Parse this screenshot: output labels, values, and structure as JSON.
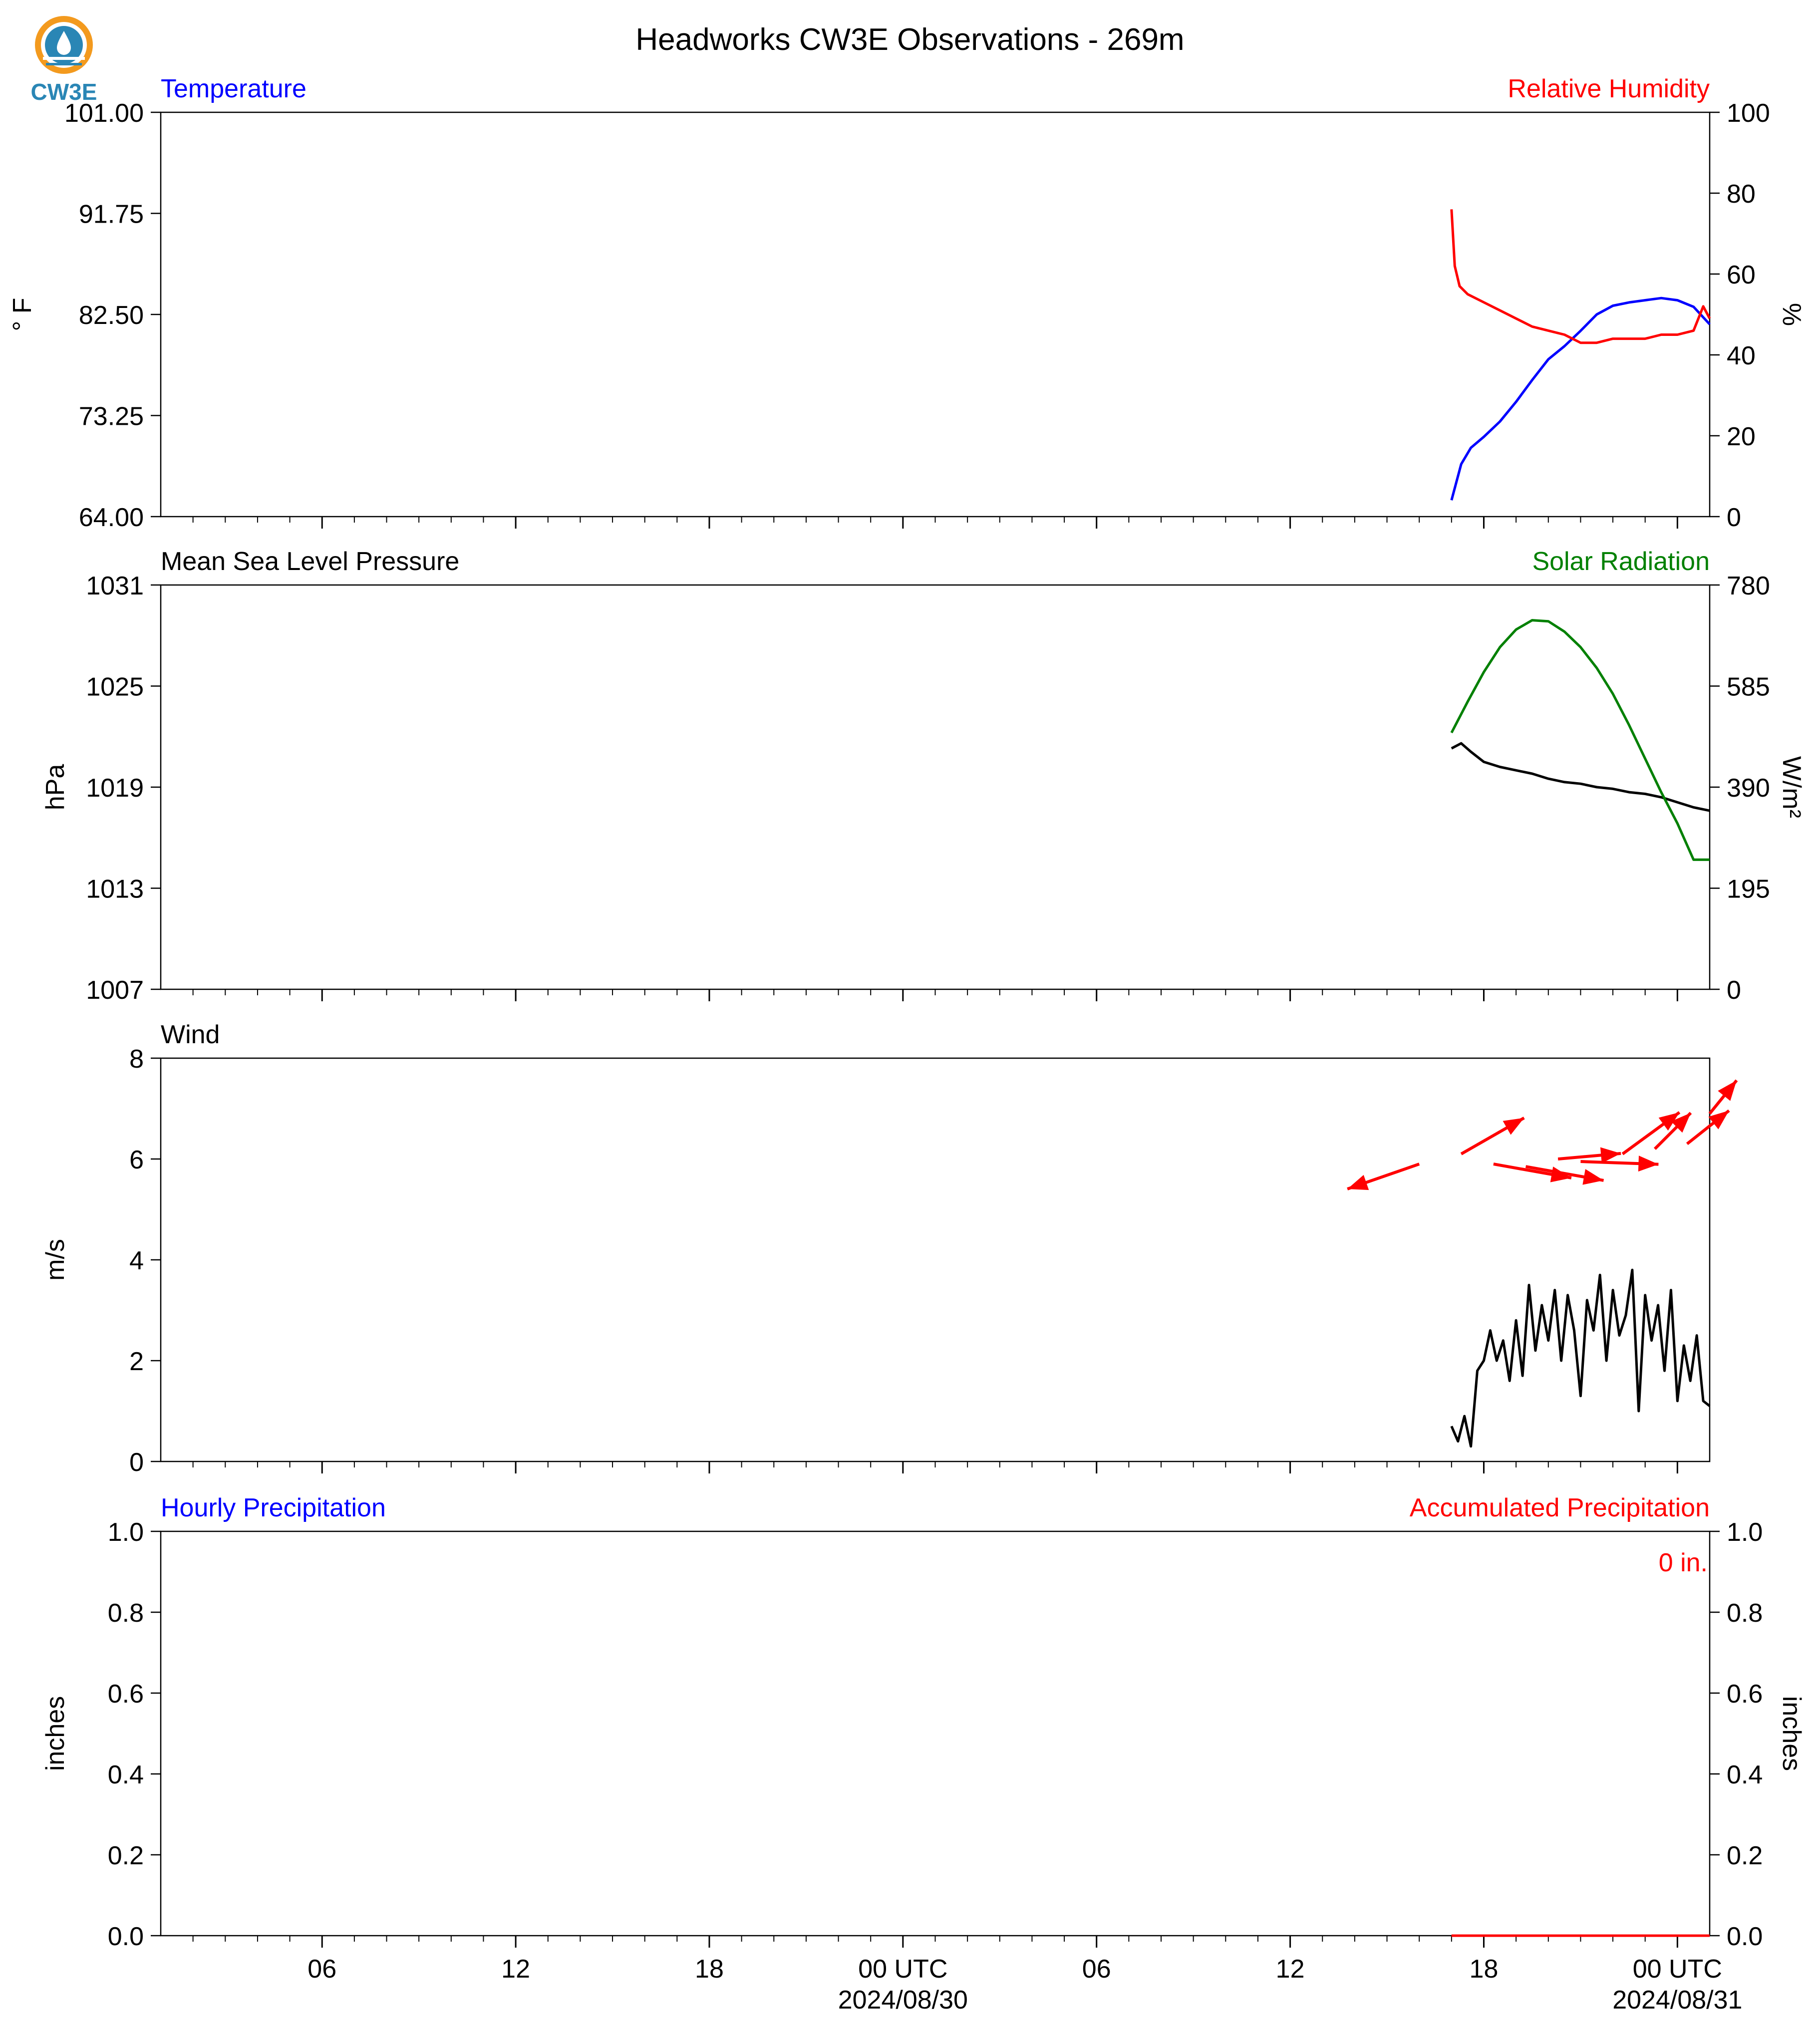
{
  "title": "Headworks CW3E Observations - 269m",
  "logo_text": "CW3E",
  "colors": {
    "temperature": "#0000ff",
    "humidity": "#ff0000",
    "pressure": "#000000",
    "solar": "#008000",
    "wind_speed": "#000000",
    "wind_arrows": "#ff0000",
    "hourly_precip_label": "#0000ff",
    "accum_precip": "#ff0000",
    "logo_orange": "#f39a1e",
    "logo_blue": "#2a86b5"
  },
  "x_axis": {
    "range_hours": [
      0,
      48
    ],
    "major_ticks": [
      {
        "hour": 5,
        "label": "06",
        "sublabel": ""
      },
      {
        "hour": 11,
        "label": "12",
        "sublabel": ""
      },
      {
        "hour": 17,
        "label": "18",
        "sublabel": ""
      },
      {
        "hour": 23,
        "label": "00 UTC",
        "sublabel": "2024/08/30"
      },
      {
        "hour": 29,
        "label": "06",
        "sublabel": ""
      },
      {
        "hour": 35,
        "label": "12",
        "sublabel": ""
      },
      {
        "hour": 41,
        "label": "18",
        "sublabel": ""
      },
      {
        "hour": 47,
        "label": "00 UTC",
        "sublabel": "2024/08/31"
      }
    ]
  },
  "chart_data": [
    {
      "type": "line",
      "panel": "temperature_humidity",
      "left_label": "Temperature",
      "right_label": "Relative Humidity",
      "ylabel_left": "° F",
      "ylabel_right": "%",
      "ylim_left": [
        64.0,
        101.0
      ],
      "yticks_left": [
        "64.00",
        "73.25",
        "82.50",
        "91.75",
        "101.00"
      ],
      "ylim_right": [
        0,
        100
      ],
      "yticks_right": [
        "0",
        "20",
        "40",
        "60",
        "80",
        "100"
      ],
      "series": [
        {
          "name": "Temperature",
          "axis": "left",
          "x": [
            40.0,
            40.3,
            40.6,
            41.0,
            41.5,
            42.0,
            42.5,
            43.0,
            43.5,
            44.0,
            44.5,
            45.0,
            45.5,
            46.0,
            46.5,
            47.0,
            47.5,
            48.0
          ],
          "y": [
            65.5,
            68.8,
            70.3,
            71.3,
            72.7,
            74.5,
            76.5,
            78.4,
            79.6,
            81.0,
            82.5,
            83.3,
            83.6,
            83.8,
            84.0,
            83.8,
            83.2,
            81.6
          ]
        },
        {
          "name": "Relative Humidity",
          "axis": "right",
          "x": [
            40.0,
            40.1,
            40.25,
            40.5,
            41.0,
            41.5,
            42.0,
            42.5,
            43.0,
            43.5,
            44.0,
            44.5,
            45.0,
            45.5,
            46.0,
            46.5,
            47.0,
            47.5,
            47.8,
            48.0
          ],
          "y": [
            76,
            62,
            57,
            55,
            53,
            51,
            49,
            47,
            46,
            45,
            43,
            43,
            44,
            44,
            44,
            45,
            45,
            46,
            52,
            49
          ]
        }
      ]
    },
    {
      "type": "line",
      "panel": "pressure_solar",
      "left_label": "Mean Sea Level Pressure",
      "right_label": "Solar Radiation",
      "ylabel_left": "hPa",
      "ylabel_right": "W/m²",
      "ylim_left": [
        1007,
        1031
      ],
      "yticks_left": [
        "1007",
        "1013",
        "1019",
        "1025",
        "1031"
      ],
      "ylim_right": [
        0,
        780
      ],
      "yticks_right": [
        "0",
        "195",
        "390",
        "585",
        "780"
      ],
      "series": [
        {
          "name": "Mean Sea Level Pressure",
          "axis": "left",
          "x": [
            40.0,
            40.3,
            40.6,
            41.0,
            41.5,
            42.0,
            42.5,
            43.0,
            43.5,
            44.0,
            44.5,
            45.0,
            45.5,
            46.0,
            46.5,
            47.0,
            47.5,
            48.0
          ],
          "y": [
            1021.3,
            1021.6,
            1021.1,
            1020.5,
            1020.2,
            1020.0,
            1019.8,
            1019.5,
            1019.3,
            1019.2,
            1019.0,
            1018.9,
            1018.7,
            1018.6,
            1018.4,
            1018.1,
            1017.8,
            1017.6
          ]
        },
        {
          "name": "Solar Radiation",
          "axis": "right",
          "x": [
            40.0,
            40.5,
            41.0,
            41.5,
            42.0,
            42.5,
            43.0,
            43.5,
            44.0,
            44.5,
            45.0,
            45.5,
            46.0,
            46.5,
            47.0,
            47.5,
            48.0
          ],
          "y": [
            495,
            555,
            612,
            660,
            694,
            712,
            710,
            690,
            660,
            620,
            570,
            510,
            445,
            380,
            320,
            250,
            250
          ]
        }
      ]
    },
    {
      "type": "line",
      "panel": "wind",
      "left_label": "Wind",
      "ylabel_left": "m/s",
      "ylim_left": [
        0,
        8
      ],
      "yticks_left": [
        "0",
        "2",
        "4",
        "6",
        "8"
      ],
      "series": [
        {
          "name": "Wind Speed",
          "axis": "left",
          "x": [
            40.0,
            40.2,
            40.4,
            40.6,
            40.8,
            41.0,
            41.2,
            41.4,
            41.6,
            41.8,
            42.0,
            42.2,
            42.4,
            42.6,
            42.8,
            43.0,
            43.2,
            43.4,
            43.6,
            43.8,
            44.0,
            44.2,
            44.4,
            44.6,
            44.8,
            45.0,
            45.2,
            45.4,
            45.6,
            45.8,
            46.0,
            46.2,
            46.4,
            46.6,
            46.8,
            47.0,
            47.2,
            47.4,
            47.6,
            47.8,
            48.0
          ],
          "y": [
            0.7,
            0.4,
            0.9,
            0.3,
            1.8,
            2.0,
            2.6,
            2.0,
            2.4,
            1.6,
            2.8,
            1.7,
            3.5,
            2.2,
            3.1,
            2.4,
            3.4,
            2.0,
            3.3,
            2.6,
            1.3,
            3.2,
            2.6,
            3.7,
            2.0,
            3.4,
            2.5,
            2.9,
            3.8,
            1.0,
            3.3,
            2.4,
            3.1,
            1.8,
            3.4,
            1.2,
            2.3,
            1.6,
            2.5,
            1.2,
            1.1
          ]
        },
        {
          "name": "Wind Direction",
          "type": "quiver",
          "x": [
            39.0,
            40.3,
            41.3,
            42.3,
            43.3,
            44.0,
            45.3,
            46.3,
            47.3,
            48.0
          ],
          "y": [
            5.9,
            6.1,
            5.9,
            5.85,
            6.0,
            5.95,
            6.1,
            6.2,
            6.3,
            6.9
          ],
          "u": [
            -2.4,
            2.1,
            2.6,
            2.6,
            2.1,
            2.6,
            1.9,
            1.2,
            1.4,
            0.9
          ],
          "v": [
            -0.9,
            1.3,
            -0.5,
            -0.5,
            0.2,
            -0.1,
            1.5,
            1.3,
            1.2,
            1.2
          ]
        }
      ]
    },
    {
      "type": "line",
      "panel": "precipitation",
      "left_label": "Hourly Precipitation",
      "right_label": "Accumulated Precipitation",
      "ylabel_left": "inches",
      "ylabel_right": "inches",
      "ylim_left": [
        0.0,
        1.0
      ],
      "yticks_left": [
        "0.0",
        "0.2",
        "0.4",
        "0.6",
        "0.8",
        "1.0"
      ],
      "ylim_right": [
        0.0,
        1.0
      ],
      "yticks_right": [
        "0.0",
        "0.2",
        "0.4",
        "0.6",
        "0.8",
        "1.0"
      ],
      "accumulated_text": "0 in.",
      "series": [
        {
          "name": "Accumulated Precipitation",
          "axis": "right",
          "x": [
            40.0,
            48.0
          ],
          "y": [
            0.0,
            0.0
          ]
        }
      ]
    }
  ]
}
